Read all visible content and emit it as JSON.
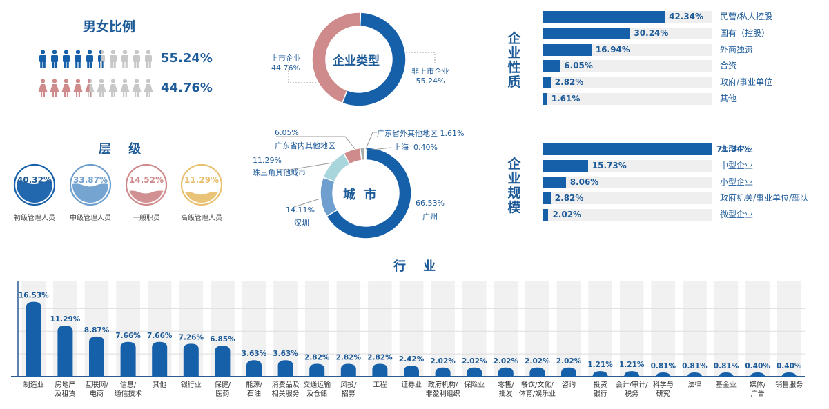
{
  "gender": {
    "title": "男女比例",
    "male_pct": "55.24%",
    "female_pct": "44.76%",
    "male_ratio": 0.5524,
    "female_ratio": 0.4476,
    "male_color": "#1660aa",
    "female_color": "#cf8a8c",
    "empty_color": "#c8c8c8"
  },
  "level": {
    "title": "层    级",
    "items": [
      {
        "pct": "40.32%",
        "value": 40.32,
        "label": "初级管理人员",
        "color": "#1660aa"
      },
      {
        "pct": "33.87%",
        "value": 33.87,
        "label": "中级管理人员",
        "color": "#6f9fce"
      },
      {
        "pct": "14.52%",
        "value": 14.52,
        "label": "一般职员",
        "color": "#cf8a8c"
      },
      {
        "pct": "11.29%",
        "value": 11.29,
        "label": "高级管理人员",
        "color": "#e8c070"
      }
    ]
  },
  "enterprise_type": {
    "center": "企业类型",
    "listed_name": "上市企业",
    "listed_pct": "44.76%",
    "unlisted_name": "非上市企业",
    "unlisted_pct": "55.24%"
  },
  "city": {
    "center": "城  市",
    "labels": {
      "gz_pct": "66.53%",
      "gz_name": "广州",
      "sz_pct": "14.11%",
      "sz_name": "深圳",
      "prd_pct": "11.29%",
      "prd_name": "珠三角其他城市",
      "gd_pct": "6.05%",
      "gd_name": "广东省内其他地区",
      "out_text": "广东省外其他地区 1.61%",
      "sh_text": "上海  0.40%"
    }
  },
  "nature": {
    "title": "企业性质",
    "items": [
      {
        "pct": "42.34%",
        "value": 42.34,
        "label": "民营/私人控股"
      },
      {
        "pct": "30.24%",
        "value": 30.24,
        "label": "国有（控股）"
      },
      {
        "pct": "16.94%",
        "value": 16.94,
        "label": "外商独资"
      },
      {
        "pct": "6.05%",
        "value": 6.05,
        "label": "合资"
      },
      {
        "pct": "2.82%",
        "value": 2.82,
        "label": "政府/事业单位"
      },
      {
        "pct": "1.61%",
        "value": 1.61,
        "label": "其他"
      }
    ]
  },
  "scale": {
    "title": "企业规模",
    "items": [
      {
        "pct": "71.34%",
        "value": 71.34,
        "label": "大型企业"
      },
      {
        "pct": "15.73%",
        "value": 15.73,
        "label": "中型企业"
      },
      {
        "pct": "8.06%",
        "value": 8.06,
        "label": "小型企业"
      },
      {
        "pct": "2.82%",
        "value": 2.82,
        "label": "政府机关/事业单位/部队"
      },
      {
        "pct": "2.02%",
        "value": 2.02,
        "label": "微型企业"
      }
    ]
  },
  "industry_title": "行    业",
  "chart_data": [
    {
      "type": "pie",
      "title": "企业类型",
      "categories": [
        "非上市企业",
        "上市企业"
      ],
      "values": [
        55.24,
        44.76
      ],
      "colors": [
        "#1660aa",
        "#cf8a8c"
      ]
    },
    {
      "type": "pie",
      "title": "城  市",
      "categories": [
        "广州",
        "深圳",
        "珠三角其他城市",
        "广东省内其他地区",
        "广东省外其他地区",
        "上海"
      ],
      "values": [
        66.53,
        14.11,
        11.29,
        6.05,
        1.61,
        0.4
      ],
      "colors": [
        "#1660aa",
        "#6f9fce",
        "#a9d6dc",
        "#cf8a8c",
        "#aaaaaa",
        "#dddddd"
      ]
    },
    {
      "type": "bar",
      "title": "行    业",
      "categories": [
        "制造业",
        "房地产\n及租赁",
        "互联网/\n电商",
        "信息/\n通信技术",
        "其他",
        "银行业",
        "保健/\n医药",
        "能源/\n石油",
        "消费品及\n相关服务",
        "交通运输\n及仓储",
        "风投/\n招募",
        "工程",
        "证券业",
        "政府机构/\n非盈利组织",
        "保险业",
        "零售/\n批发",
        "餐饮/文化/\n体育/娱乐业",
        "咨询",
        "投资\n银行",
        "会计/审计/\n税务",
        "科学与\n研究",
        "法律",
        "基金业",
        "媒体/\n广告",
        "销售服务"
      ],
      "values": [
        16.53,
        11.29,
        8.87,
        7.66,
        7.66,
        7.26,
        6.85,
        3.63,
        3.63,
        2.82,
        2.82,
        2.82,
        2.42,
        2.02,
        2.02,
        2.02,
        2.02,
        2.02,
        1.21,
        1.21,
        0.81,
        0.81,
        0.81,
        0.4,
        0.4
      ],
      "labels": [
        "16.53%",
        "11.29%",
        "8.87%",
        "7.66%",
        "7.66%",
        "7.26%",
        "6.85%",
        "3.63%",
        "3.63%",
        "2.82%",
        "2.82%",
        "2.82%",
        "2.42%",
        "2.02%",
        "2.02%",
        "2.02%",
        "2.02%",
        "2.02%",
        "1.21%",
        "1.21%",
        "0.81%",
        "0.81%",
        "0.81%",
        "0.40%",
        "0.40%"
      ],
      "ylim": [
        0,
        20
      ],
      "grid": true,
      "bar_color": "#1660aa"
    }
  ]
}
